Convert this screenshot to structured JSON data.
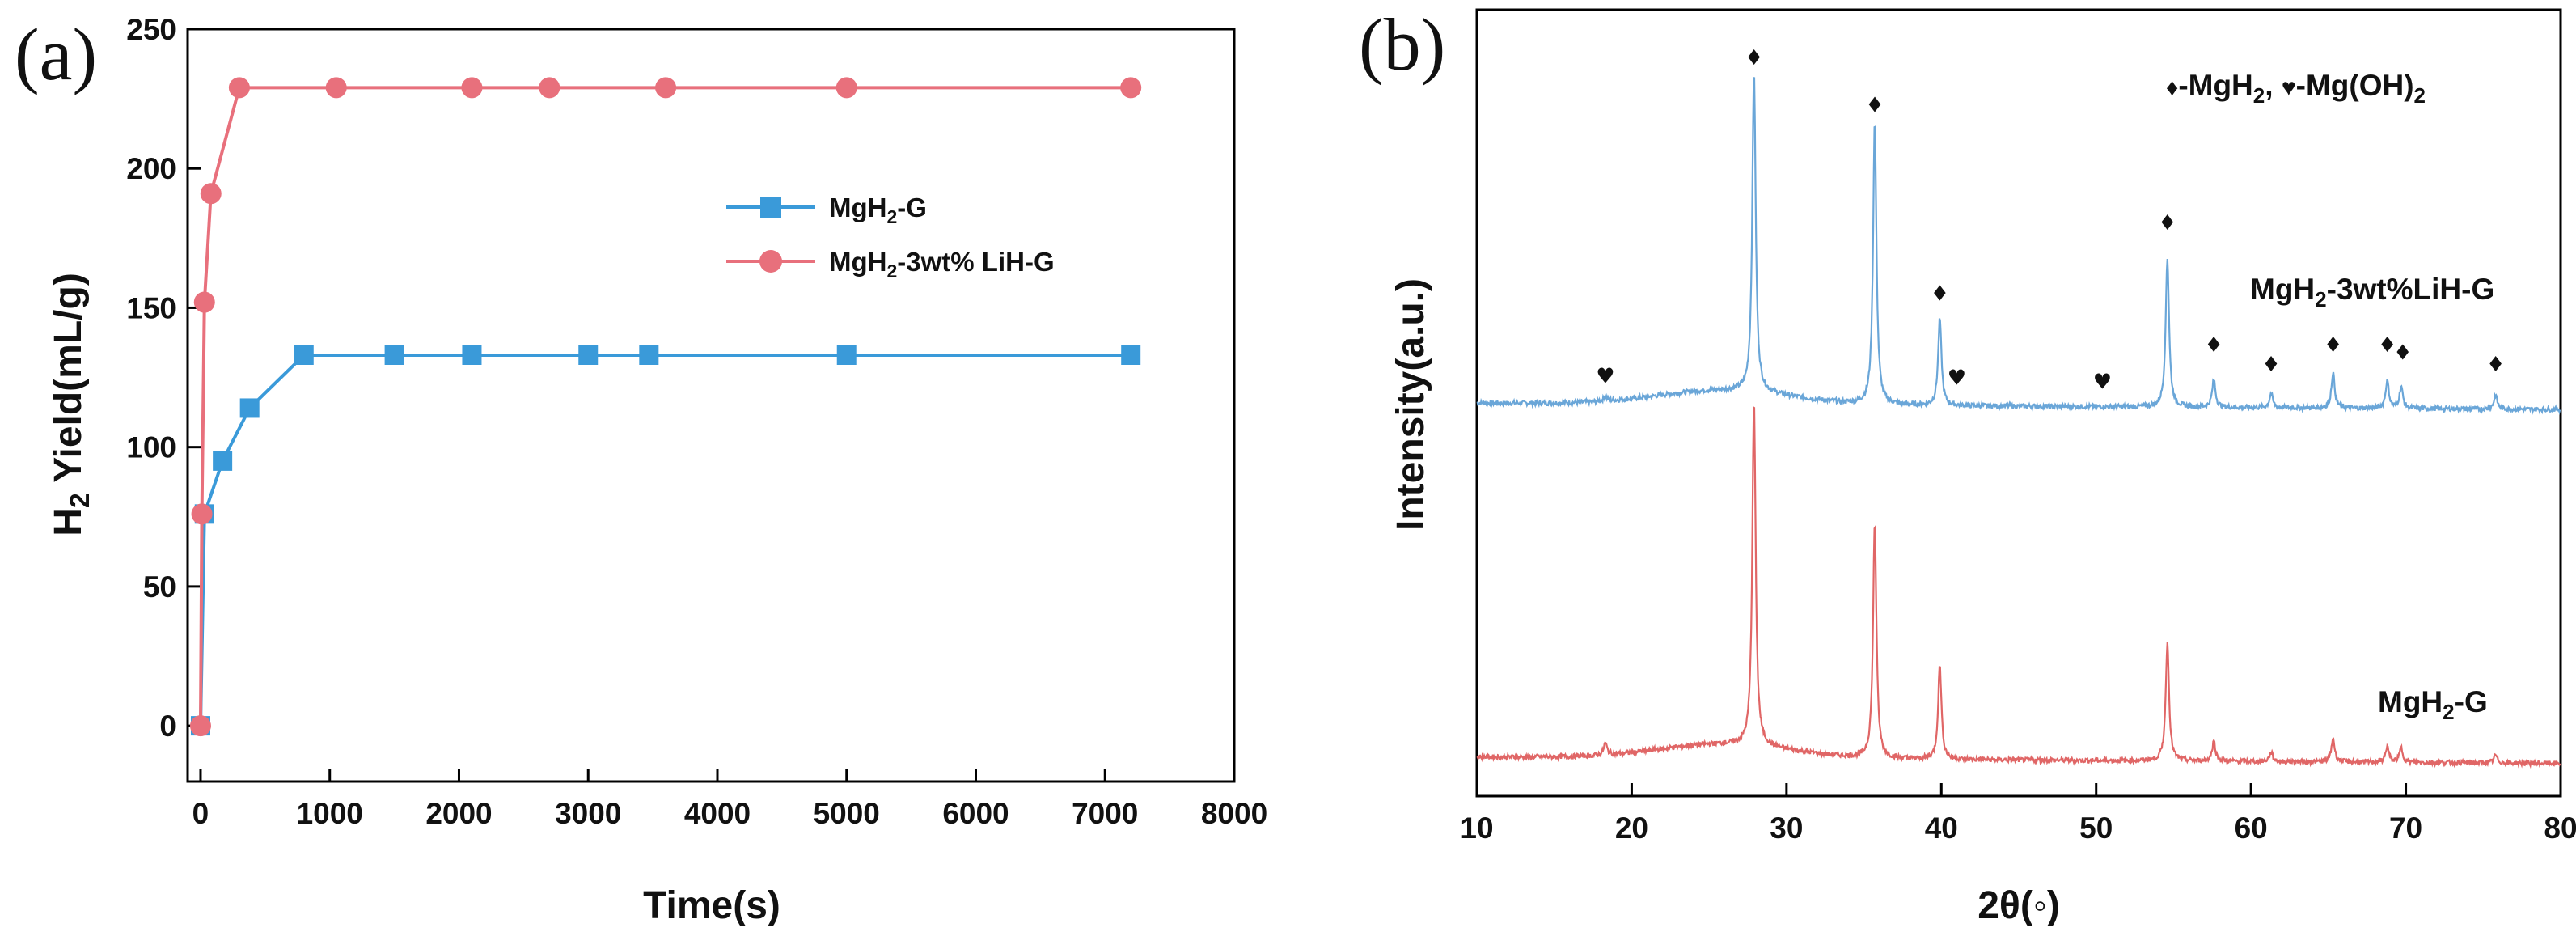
{
  "chart_data": [
    {
      "panel_label": "(a)",
      "type": "line",
      "xlabel": "Time(s)",
      "ylabel": {
        "main": "H",
        "sub": "2",
        "rest": " Yield(mL/g)"
      },
      "xlim": [
        -100,
        8000
      ],
      "ylim": [
        -20,
        250
      ],
      "xticks": [
        0,
        1000,
        2000,
        3000,
        4000,
        5000,
        6000,
        7000,
        8000
      ],
      "yticks": [
        0,
        50,
        100,
        150,
        200,
        250
      ],
      "legend_position": "center-right",
      "series": [
        {
          "name": "MgH2-G",
          "legend": {
            "main": "MgH",
            "sub": "2",
            "rest": "-G"
          },
          "color": "#3a9ad9",
          "marker": "square",
          "x": [
            0,
            30,
            170,
            380,
            800,
            1500,
            2100,
            3000,
            3470,
            5000,
            7200
          ],
          "y": [
            0,
            76,
            95,
            114,
            133,
            133,
            133,
            133,
            133,
            133,
            133
          ]
        },
        {
          "name": "MgH2-3wt% LiH-G",
          "legend": {
            "main": "MgH",
            "sub": "2",
            "rest": "-3wt% LiH-G"
          },
          "color": "#e8707c",
          "marker": "circle",
          "x": [
            0,
            10,
            30,
            80,
            300,
            1050,
            2100,
            2700,
            3600,
            5000,
            7200
          ],
          "y": [
            0,
            76,
            152,
            191,
            229,
            229,
            229,
            229,
            229,
            229,
            229
          ]
        }
      ]
    },
    {
      "panel_label": "(b)",
      "type": "line",
      "xlabel": "2θ(◦)",
      "ylabel": "Intensity(a.u.)",
      "xlim": [
        10,
        80
      ],
      "xticks": [
        10,
        20,
        30,
        40,
        50,
        60,
        70,
        80
      ],
      "yticks": [],
      "legend_text": {
        "mgh2_symbol": "♦",
        "mgh2_text": "-MgH",
        "mgh2_sub": "2",
        "sep": ", ",
        "mgoh_symbol": "♥",
        "mgoh_text": "-Mg(OH)",
        "mgoh_sub": "2"
      },
      "series": [
        {
          "name": "MgH2-3wt%LiH-G",
          "label": {
            "main": "MgH",
            "sub": "2",
            "rest": "-3wt%LiH-G"
          },
          "color": "#6aa6d8",
          "baseline": 0.5,
          "peaks": [
            {
              "x": 18.3,
              "h": 0.006
            },
            {
              "x": 27.9,
              "h": 0.41
            },
            {
              "x": 35.7,
              "h": 0.36
            },
            {
              "x": 39.9,
              "h": 0.11
            },
            {
              "x": 54.6,
              "h": 0.19
            },
            {
              "x": 57.6,
              "h": 0.035
            },
            {
              "x": 61.3,
              "h": 0.018
            },
            {
              "x": 65.3,
              "h": 0.045
            },
            {
              "x": 68.8,
              "h": 0.035
            },
            {
              "x": 69.7,
              "h": 0.028
            },
            {
              "x": 75.8,
              "h": 0.018
            }
          ],
          "markers": [
            {
              "x": 18.3,
              "symbol": "♥",
              "y": 0.525
            },
            {
              "x": 27.9,
              "symbol": "♦",
              "y": 0.93
            },
            {
              "x": 35.7,
              "symbol": "♦",
              "y": 0.87
            },
            {
              "x": 39.9,
              "symbol": "♦",
              "y": 0.63
            },
            {
              "x": 41.0,
              "symbol": "♥",
              "y": 0.523
            },
            {
              "x": 50.4,
              "symbol": "♥",
              "y": 0.518
            },
            {
              "x": 54.6,
              "symbol": "♦",
              "y": 0.72
            },
            {
              "x": 57.6,
              "symbol": "♦",
              "y": 0.565
            },
            {
              "x": 61.3,
              "symbol": "♦",
              "y": 0.54
            },
            {
              "x": 65.3,
              "symbol": "♦",
              "y": 0.565
            },
            {
              "x": 68.8,
              "symbol": "♦",
              "y": 0.565
            },
            {
              "x": 69.8,
              "symbol": "♦",
              "y": 0.555
            },
            {
              "x": 75.8,
              "symbol": "♦",
              "y": 0.54
            }
          ]
        },
        {
          "name": "MgH2-G",
          "label": {
            "main": "MgH",
            "sub": "2",
            "rest": "-G"
          },
          "color": "#e06666",
          "baseline": 0.05,
          "peaks": [
            {
              "x": 18.3,
              "h": 0.015
            },
            {
              "x": 27.9,
              "h": 0.44
            },
            {
              "x": 35.7,
              "h": 0.3
            },
            {
              "x": 39.9,
              "h": 0.12
            },
            {
              "x": 54.6,
              "h": 0.15
            },
            {
              "x": 57.6,
              "h": 0.025
            },
            {
              "x": 61.3,
              "h": 0.012
            },
            {
              "x": 65.3,
              "h": 0.03
            },
            {
              "x": 68.8,
              "h": 0.02
            },
            {
              "x": 69.7,
              "h": 0.018
            },
            {
              "x": 75.8,
              "h": 0.01
            }
          ]
        }
      ]
    }
  ]
}
